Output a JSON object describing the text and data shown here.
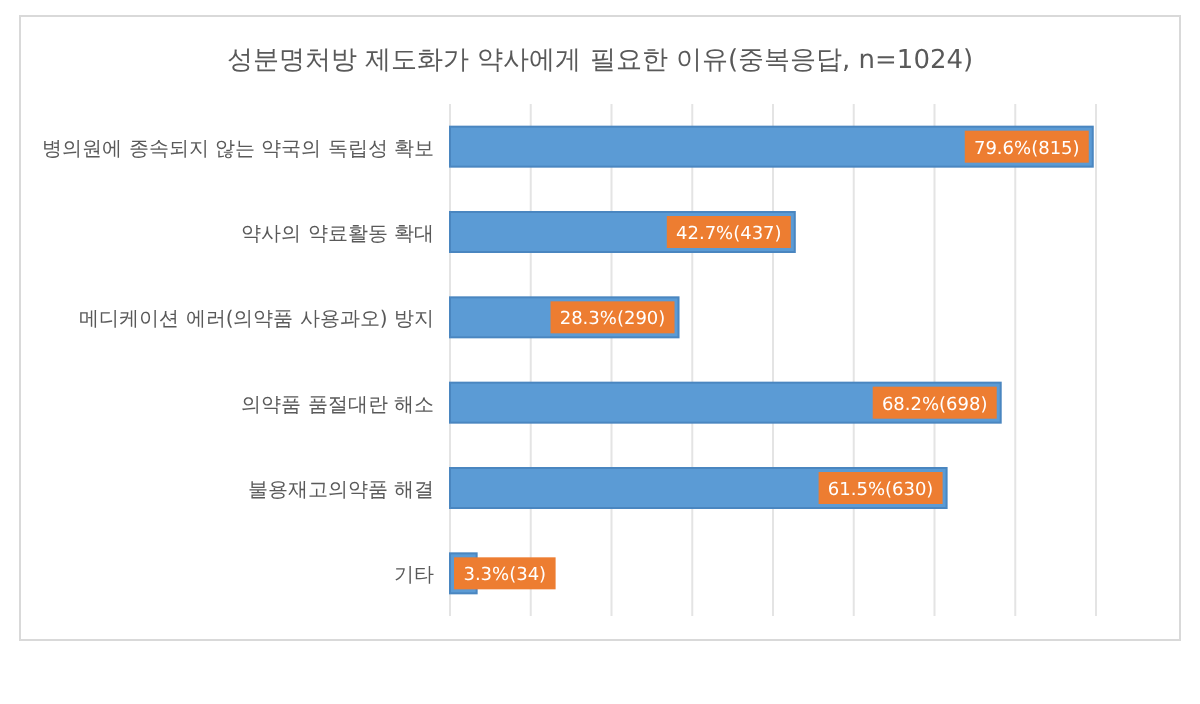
{
  "chart_data": {
    "type": "bar",
    "orientation": "horizontal",
    "title": "성분명처방 제도화가 약사에게 필요한 이유(중복응답, n=1024)",
    "categories": [
      "병의원에 종속되지 않는 약국의 독립성 확보",
      "약사의 약료활동 확대",
      "메디케이션 에러(의약품 사용과오) 방지",
      "의약품 품절대란 해소",
      "불용재고의약품 해결",
      "기타"
    ],
    "values": [
      79.6,
      42.7,
      28.3,
      68.2,
      61.5,
      3.3
    ],
    "value_labels": [
      "79.6%(815)",
      "42.7%(437)",
      "28.3%(290)",
      "68.2%(698)",
      "61.5%(630)",
      "3.3%(34)"
    ],
    "color": "#5b9bd5",
    "xlim": [
      0,
      80
    ],
    "xticks": [
      {
        "value": 0,
        "label": null
      },
      {
        "value": 10,
        "label": null
      },
      {
        "value": 20,
        "label": null
      },
      {
        "value": 30,
        "label": null
      },
      {
        "value": 40,
        "label": null
      },
      {
        "value": 50,
        "label": null
      },
      {
        "value": 60,
        "label": null
      },
      {
        "value": 70,
        "label": null
      },
      {
        "value": 80,
        "label": null
      }
    ],
    "grid": "x",
    "tick_labels": "y"
  }
}
